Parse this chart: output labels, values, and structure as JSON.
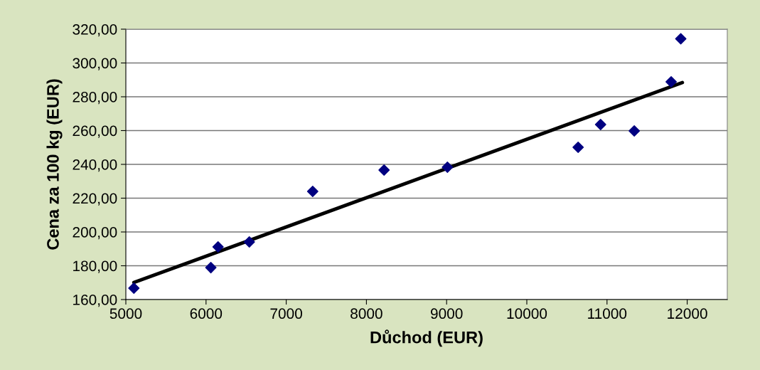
{
  "chart_data": {
    "type": "scatter",
    "xlabel": "Důchod (EUR)",
    "ylabel": "Cena za 100 kg (EUR)",
    "x": [
      5100,
      6060,
      6150,
      6540,
      7330,
      8220,
      9010,
      10640,
      10920,
      11340,
      11800,
      11920
    ],
    "series": [
      {
        "color": "#000080",
        "marker": "diamond",
        "values": [
          166.7,
          178.9,
          191.2,
          194.1,
          224.0,
          236.6,
          238.3,
          250.1,
          263.6,
          259.8,
          288.8,
          314.3
        ]
      },
      {
        "type": "line",
        "color": "#000000",
        "marker": "none",
        "line_style": "solid",
        "x": [
          5100,
          11940
        ],
        "values": [
          170.1,
          288.4
        ]
      }
    ],
    "xlim": [
      5000,
      12500
    ],
    "xticks": [
      5000,
      6000,
      7000,
      8000,
      9000,
      10000,
      11000,
      12000
    ],
    "ylim": [
      160,
      320
    ],
    "yticks": [
      {
        "value": 160,
        "label": "160,00"
      },
      {
        "value": 180,
        "label": "180,00"
      },
      {
        "value": 200,
        "label": "200,00"
      },
      {
        "value": 220,
        "label": "220,00"
      },
      {
        "value": 240,
        "label": "240,00"
      },
      {
        "value": 260,
        "label": "260,00"
      },
      {
        "value": 280,
        "label": "280,00"
      },
      {
        "value": 300,
        "label": "300,00"
      },
      {
        "value": 320,
        "label": "320,00"
      }
    ],
    "grid": "y"
  }
}
